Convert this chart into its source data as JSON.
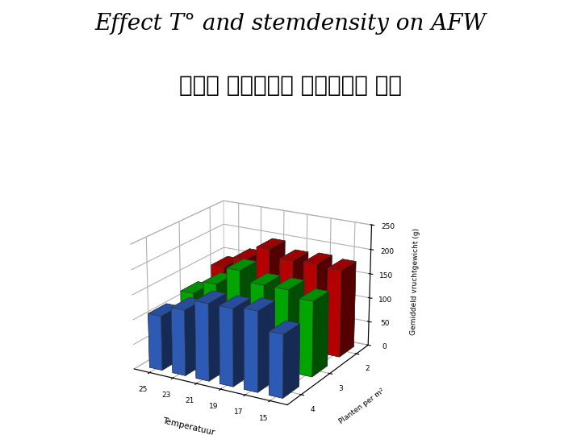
{
  "title_line1": "Effect T° and stemdensity on AFW",
  "title_line2": "온도와 재식밀도가 평균과중에 영향",
  "xlabel": "Temperatuur",
  "ylabel": "Gemiddeld vruchtgewicht (g)",
  "zlabel": "Planten per m²",
  "temperatures": [
    25,
    23,
    21,
    19,
    17,
    15
  ],
  "densities": [
    4,
    3,
    2
  ],
  "values": {
    "2": [
      140,
      165,
      195,
      180,
      182,
      178
    ],
    "3": [
      120,
      148,
      185,
      165,
      165,
      152
    ],
    "4": [
      110,
      132,
      155,
      155,
      160,
      125
    ]
  },
  "colors": {
    "2": "#cc0000",
    "3": "#00bb00",
    "4": "#3366cc"
  },
  "zlim": [
    0,
    250
  ],
  "zticks": [
    0,
    50,
    100,
    150,
    200,
    250
  ],
  "background_color": "#ffffff",
  "title_fontsize": 20,
  "subtitle_fontsize": 20,
  "bar_width": 0.55,
  "bar_depth": 0.55
}
